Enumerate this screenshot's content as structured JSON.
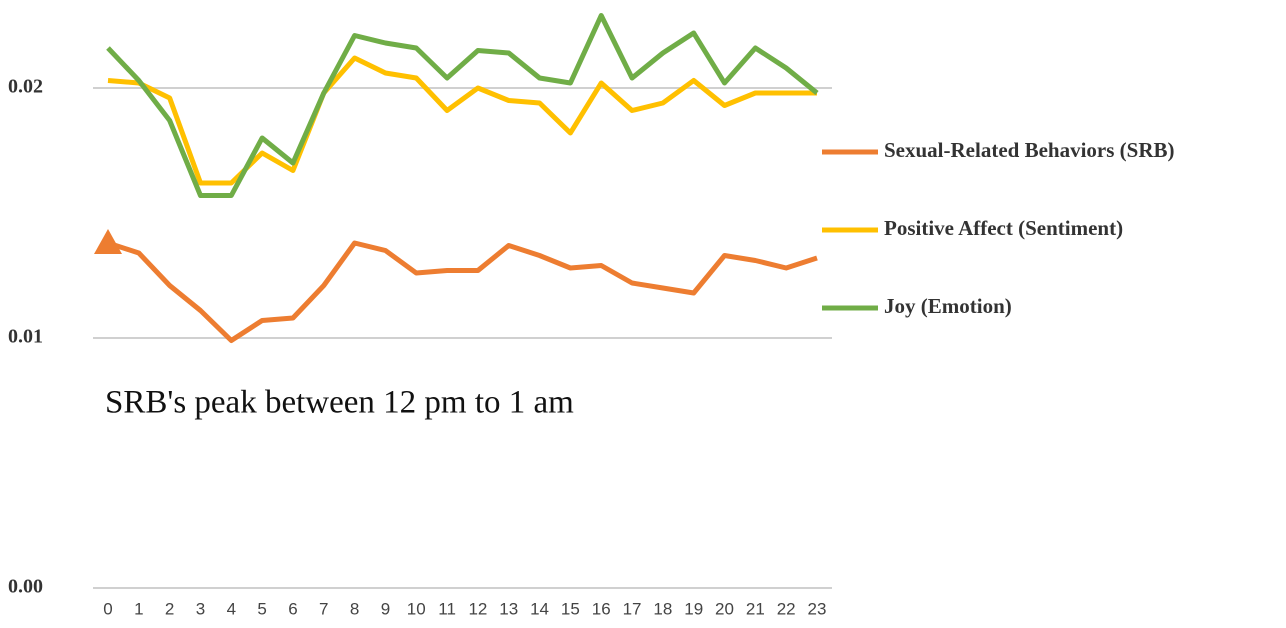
{
  "chart_data": {
    "type": "line",
    "annotation": "SRB's peak between 12 pm to 1 am",
    "categories": [
      "0",
      "1",
      "2",
      "3",
      "4",
      "5",
      "6",
      "7",
      "8",
      "9",
      "10",
      "11",
      "12",
      "13",
      "14",
      "15",
      "16",
      "17",
      "18",
      "19",
      "20",
      "21",
      "22",
      "23"
    ],
    "series": [
      {
        "name": "Sexual-Related Behaviors (SRB)",
        "color": "#ed7d31",
        "marker_first": "triangle",
        "values": [
          0.0138,
          0.0134,
          0.0121,
          0.0111,
          0.0099,
          0.0107,
          0.0108,
          0.0121,
          0.0138,
          0.0135,
          0.0126,
          0.0127,
          0.0127,
          0.0137,
          0.0133,
          0.0128,
          0.0129,
          0.0122,
          0.012,
          0.0118,
          0.0133,
          0.0131,
          0.0128,
          0.0132
        ]
      },
      {
        "name": "Positive Affect (Sentiment)",
        "color": "#ffc000",
        "values": [
          0.0203,
          0.0202,
          0.0196,
          0.0162,
          0.0162,
          0.0174,
          0.0167,
          0.0198,
          0.0212,
          0.0206,
          0.0204,
          0.0191,
          0.02,
          0.0195,
          0.0194,
          0.0182,
          0.0202,
          0.0191,
          0.0194,
          0.0203,
          0.0193,
          0.0198,
          0.0198,
          0.0198
        ]
      },
      {
        "name": "Joy (Emotion)",
        "color": "#70ad47",
        "values": [
          0.0216,
          0.0203,
          0.0187,
          0.0157,
          0.0157,
          0.018,
          0.017,
          0.0198,
          0.0221,
          0.0218,
          0.0216,
          0.0204,
          0.0215,
          0.0214,
          0.0204,
          0.0202,
          0.0229,
          0.0204,
          0.0214,
          0.0222,
          0.0202,
          0.0216,
          0.0208,
          0.0198
        ]
      }
    ],
    "ylim": [
      0,
      0.023
    ],
    "yticks": [
      {
        "value": 0,
        "label": "0.00"
      },
      0.01,
      0.02
    ],
    "grid": true,
    "legend": "right"
  }
}
